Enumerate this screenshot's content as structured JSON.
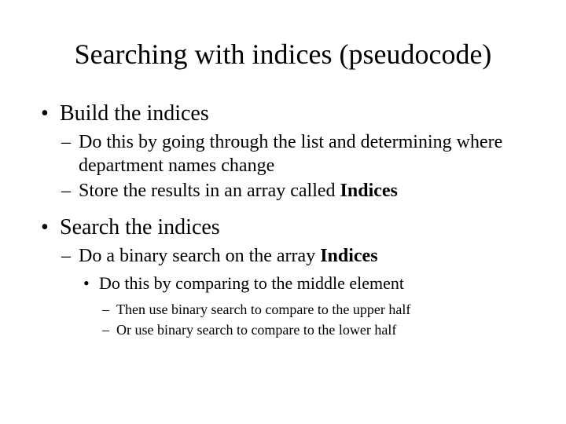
{
  "background_color": "#ffffff",
  "text_color": "#000000",
  "font_family": "Times New Roman",
  "title": "Searching with indices (pseudocode)",
  "title_fontsize": 36,
  "bullets": {
    "lvl1_fontsize": 28,
    "lvl2_fontsize": 24,
    "lvl3_fontsize": 22,
    "lvl4_fontsize": 18,
    "lvl1_marker": "•",
    "lvl2_marker": "–",
    "lvl3_marker": "•",
    "lvl4_marker": "–"
  },
  "items": [
    {
      "text": "Build the indices",
      "children": [
        {
          "text": "Do this by going through the list and determining where department names change"
        },
        {
          "text_prefix": "Store the results in an array called ",
          "text_bold": "Indices"
        }
      ]
    },
    {
      "text": "Search the indices",
      "children": [
        {
          "text_prefix": "Do a binary search on the array ",
          "text_bold": "Indices",
          "children": [
            {
              "text": "Do this by comparing to the middle element",
              "children": [
                {
                  "text": "Then use binary search to compare to the upper half"
                },
                {
                  "text": "Or use binary search to compare to the lower half"
                }
              ]
            }
          ]
        }
      ]
    }
  ]
}
